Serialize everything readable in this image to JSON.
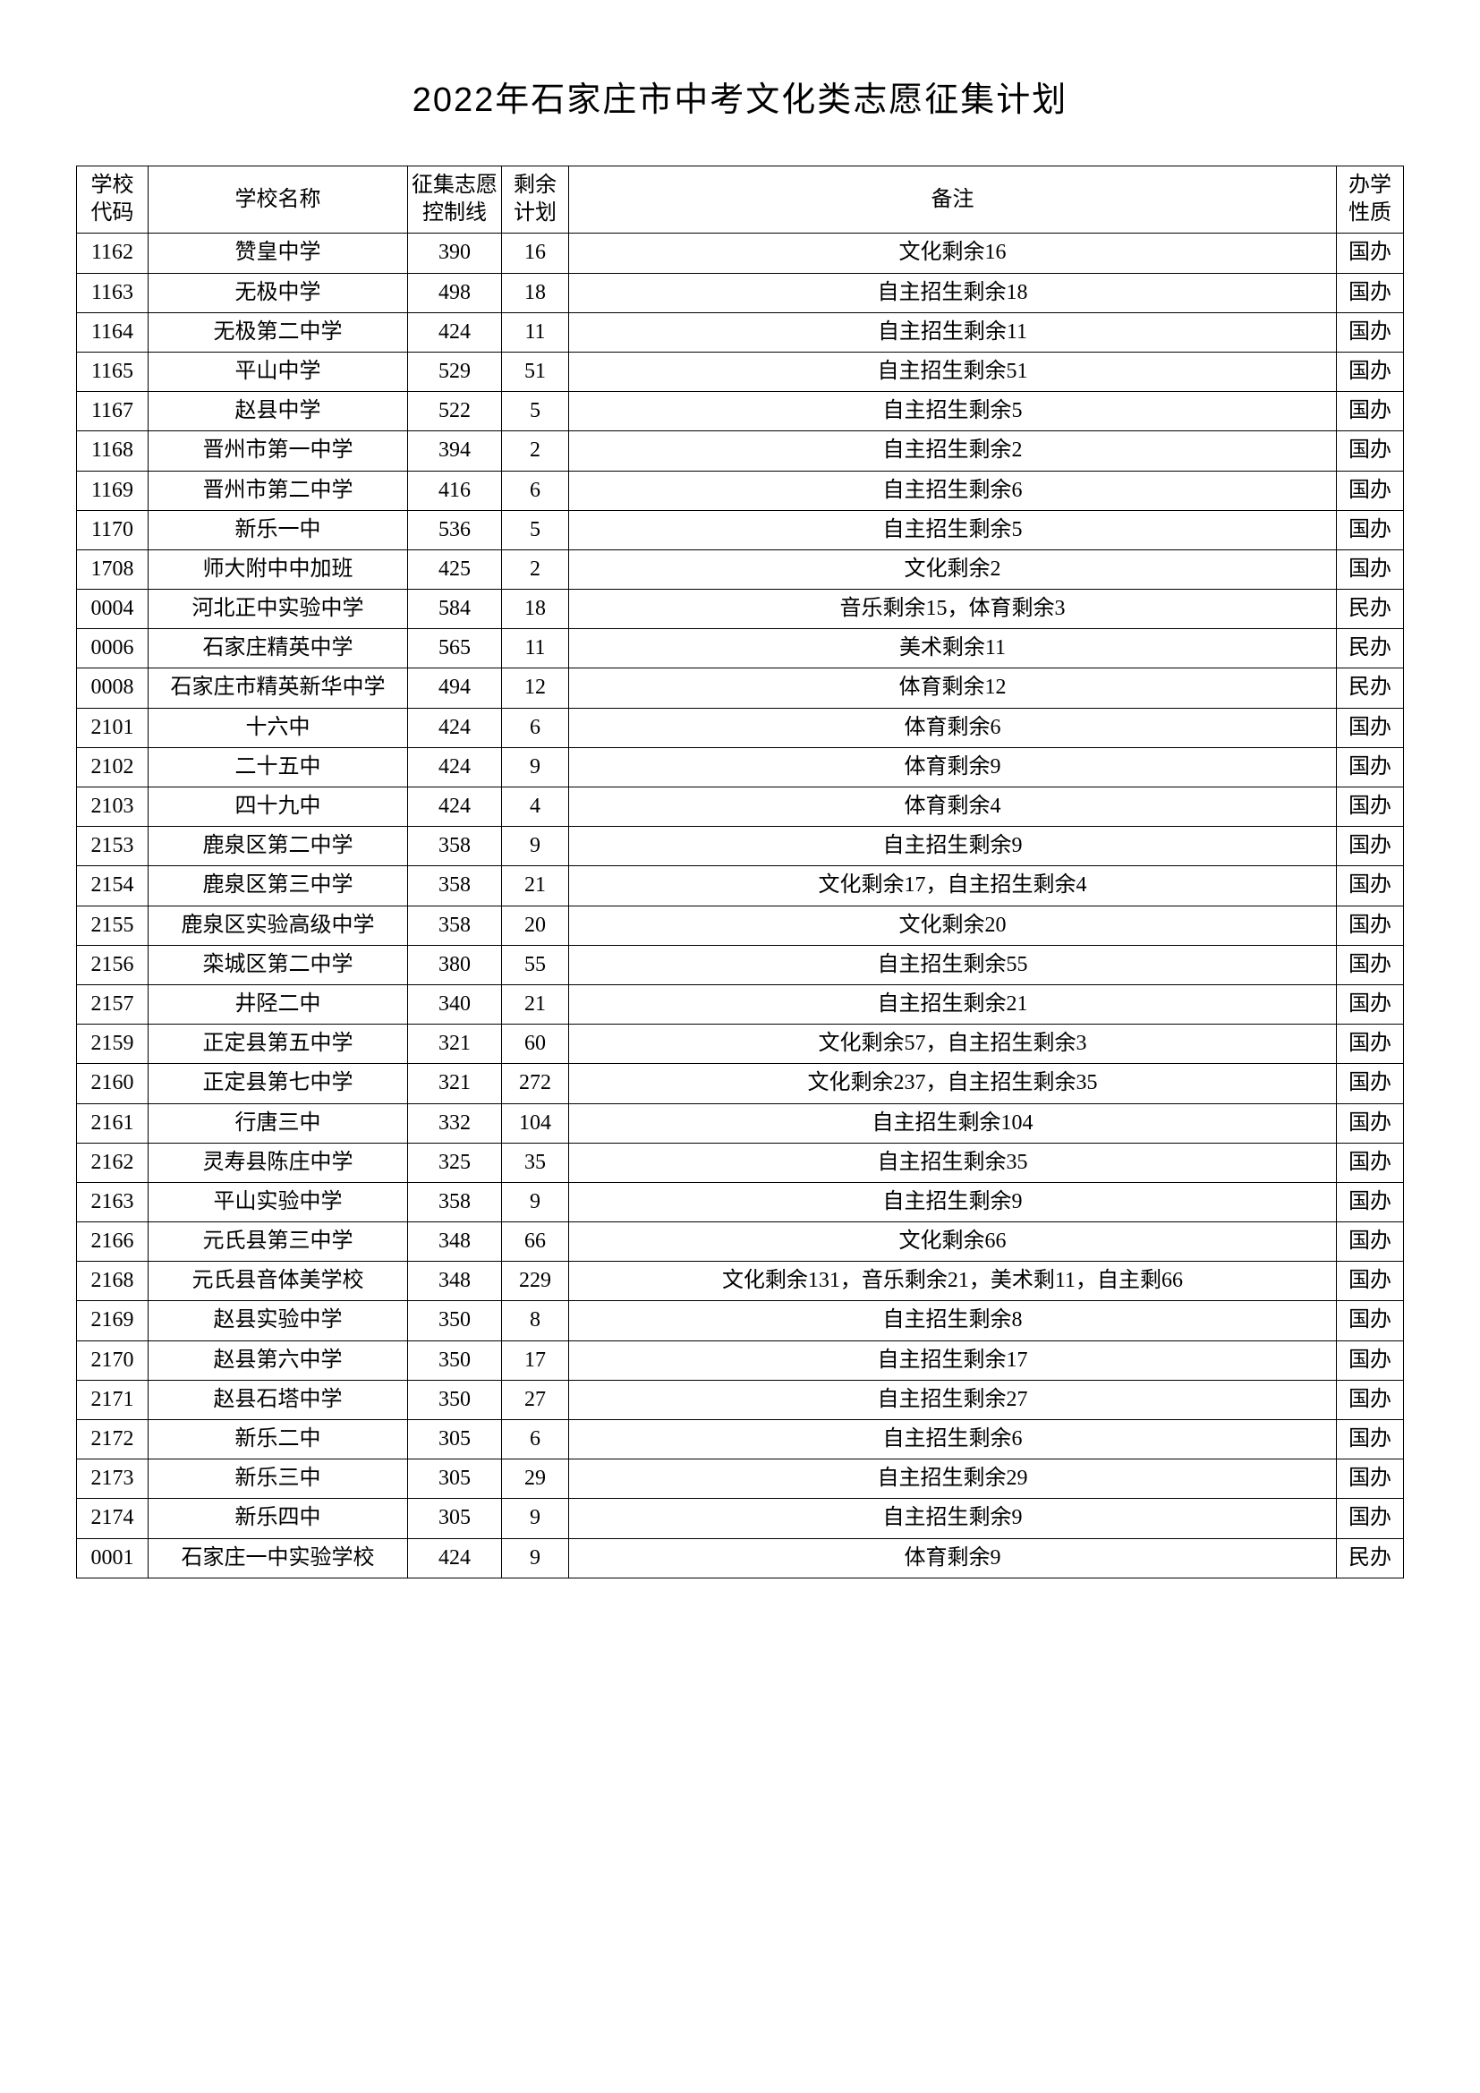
{
  "title": "2022年石家庄市中考文化类志愿征集计划",
  "columns": [
    "学校代码",
    "学校名称",
    "征集志愿控制线",
    "剩余计划",
    "备注",
    "办学性质"
  ],
  "rows": [
    [
      "1162",
      "赞皇中学",
      "390",
      "16",
      "文化剩余16",
      "国办"
    ],
    [
      "1163",
      "无极中学",
      "498",
      "18",
      "自主招生剩余18",
      "国办"
    ],
    [
      "1164",
      "无极第二中学",
      "424",
      "11",
      "自主招生剩余11",
      "国办"
    ],
    [
      "1165",
      "平山中学",
      "529",
      "51",
      "自主招生剩余51",
      "国办"
    ],
    [
      "1167",
      "赵县中学",
      "522",
      "5",
      "自主招生剩余5",
      "国办"
    ],
    [
      "1168",
      "晋州市第一中学",
      "394",
      "2",
      "自主招生剩余2",
      "国办"
    ],
    [
      "1169",
      "晋州市第二中学",
      "416",
      "6",
      "自主招生剩余6",
      "国办"
    ],
    [
      "1170",
      "新乐一中",
      "536",
      "5",
      "自主招生剩余5",
      "国办"
    ],
    [
      "1708",
      "师大附中中加班",
      "425",
      "2",
      "文化剩余2",
      "国办"
    ],
    [
      "0004",
      "河北正中实验中学",
      "584",
      "18",
      "音乐剩余15，体育剩余3",
      "民办"
    ],
    [
      "0006",
      "石家庄精英中学",
      "565",
      "11",
      "美术剩余11",
      "民办"
    ],
    [
      "0008",
      "石家庄市精英新华中学",
      "494",
      "12",
      "体育剩余12",
      "民办"
    ],
    [
      "2101",
      "十六中",
      "424",
      "6",
      "体育剩余6",
      "国办"
    ],
    [
      "2102",
      "二十五中",
      "424",
      "9",
      "体育剩余9",
      "国办"
    ],
    [
      "2103",
      "四十九中",
      "424",
      "4",
      "体育剩余4",
      "国办"
    ],
    [
      "2153",
      "鹿泉区第二中学",
      "358",
      "9",
      "自主招生剩余9",
      "国办"
    ],
    [
      "2154",
      "鹿泉区第三中学",
      "358",
      "21",
      "文化剩余17，自主招生剩余4",
      "国办"
    ],
    [
      "2155",
      "鹿泉区实验高级中学",
      "358",
      "20",
      "文化剩余20",
      "国办"
    ],
    [
      "2156",
      "栾城区第二中学",
      "380",
      "55",
      "自主招生剩余55",
      "国办"
    ],
    [
      "2157",
      "井陉二中",
      "340",
      "21",
      "自主招生剩余21",
      "国办"
    ],
    [
      "2159",
      "正定县第五中学",
      "321",
      "60",
      "文化剩余57，自主招生剩余3",
      "国办"
    ],
    [
      "2160",
      "正定县第七中学",
      "321",
      "272",
      "文化剩余237，自主招生剩余35",
      "国办"
    ],
    [
      "2161",
      "行唐三中",
      "332",
      "104",
      "自主招生剩余104",
      "国办"
    ],
    [
      "2162",
      "灵寿县陈庄中学",
      "325",
      "35",
      "自主招生剩余35",
      "国办"
    ],
    [
      "2163",
      "平山实验中学",
      "358",
      "9",
      "自主招生剩余9",
      "国办"
    ],
    [
      "2166",
      "元氏县第三中学",
      "348",
      "66",
      "文化剩余66",
      "国办"
    ],
    [
      "2168",
      "元氏县音体美学校",
      "348",
      "229",
      "文化剩余131，音乐剩余21，美术剩11，自主剩66",
      "国办"
    ],
    [
      "2169",
      "赵县实验中学",
      "350",
      "8",
      "自主招生剩余8",
      "国办"
    ],
    [
      "2170",
      "赵县第六中学",
      "350",
      "17",
      "自主招生剩余17",
      "国办"
    ],
    [
      "2171",
      "赵县石塔中学",
      "350",
      "27",
      "自主招生剩余27",
      "国办"
    ],
    [
      "2172",
      "新乐二中",
      "305",
      "6",
      "自主招生剩余6",
      "国办"
    ],
    [
      "2173",
      "新乐三中",
      "305",
      "29",
      "自主招生剩余29",
      "国办"
    ],
    [
      "2174",
      "新乐四中",
      "305",
      "9",
      "自主招生剩余9",
      "国办"
    ],
    [
      "0001",
      "石家庄一中实验学校",
      "424",
      "9",
      "体育剩余9",
      "民办"
    ]
  ]
}
